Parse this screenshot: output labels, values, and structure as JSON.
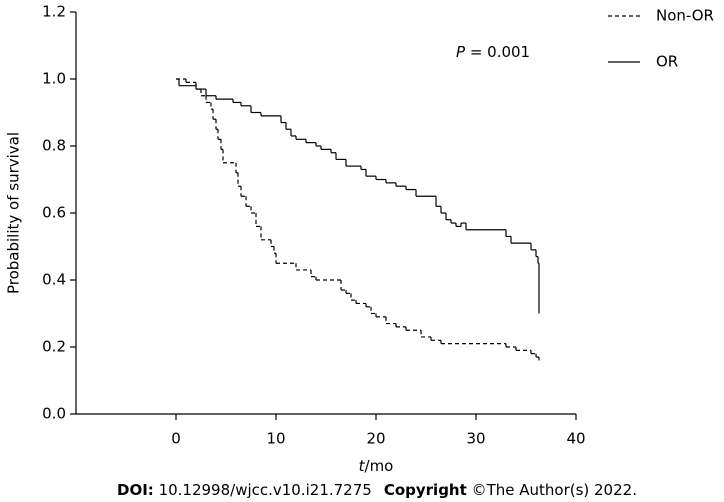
{
  "chart_data": {
    "type": "step",
    "y_label": "Probability of survival",
    "x_label": {
      "symbol": "t",
      "text": "/mo"
    },
    "annotation": {
      "symbol": "P",
      "text": " = 0.001"
    },
    "xlim": [
      -10,
      40
    ],
    "xticks": [
      0,
      10,
      20,
      30,
      40
    ],
    "ylim": [
      0,
      1.2
    ],
    "yticks": [
      {
        "value": 0,
        "label": "0.0"
      },
      0.2,
      0.4,
      0.6,
      0.8,
      {
        "value": 1,
        "label": "1.0"
      },
      1.2
    ],
    "legend": "top-right-outside",
    "series": [
      {
        "name": "Non-OR",
        "color": "#000000",
        "dash": true,
        "x": [
          0,
          1,
          2,
          2.5,
          3,
          3.5,
          3.7,
          4,
          4.2,
          4.5,
          4.7,
          6,
          6.2,
          6.5,
          7,
          7.5,
          8,
          8.5,
          9.5,
          9.8,
          10,
          12,
          13.5,
          14,
          16.5,
          17,
          17.5,
          18,
          19,
          19.5,
          20,
          21,
          22,
          23,
          24.5,
          25.5,
          26.5,
          33,
          34,
          35.5,
          36,
          36.3
        ],
        "values": [
          1.0,
          0.99,
          0.97,
          0.95,
          0.93,
          0.91,
          0.88,
          0.85,
          0.82,
          0.79,
          0.75,
          0.72,
          0.68,
          0.65,
          0.62,
          0.6,
          0.56,
          0.52,
          0.5,
          0.48,
          0.45,
          0.43,
          0.41,
          0.4,
          0.37,
          0.36,
          0.34,
          0.33,
          0.32,
          0.3,
          0.29,
          0.27,
          0.26,
          0.25,
          0.23,
          0.22,
          0.21,
          0.2,
          0.19,
          0.18,
          0.17,
          0.16
        ]
      },
      {
        "name": "OR",
        "color": "#000000",
        "dash": false,
        "x": [
          0,
          0.3,
          2,
          3,
          4,
          5.7,
          6.5,
          7.5,
          8.5,
          10.5,
          11,
          11.5,
          12,
          13,
          14,
          14.5,
          15.5,
          16,
          17,
          18.5,
          19,
          20,
          21,
          22,
          23,
          24,
          26,
          26.5,
          27,
          27.5,
          28,
          28.5,
          29,
          33,
          33.5,
          35.5,
          36,
          36.2,
          36.3
        ],
        "values": [
          1.0,
          0.98,
          0.97,
          0.95,
          0.94,
          0.93,
          0.92,
          0.9,
          0.89,
          0.87,
          0.85,
          0.83,
          0.82,
          0.81,
          0.8,
          0.79,
          0.78,
          0.76,
          0.74,
          0.73,
          0.71,
          0.7,
          0.69,
          0.68,
          0.67,
          0.65,
          0.62,
          0.6,
          0.58,
          0.57,
          0.56,
          0.57,
          0.55,
          0.53,
          0.51,
          0.49,
          0.47,
          0.45,
          0.3
        ]
      }
    ]
  },
  "footer": {
    "doi_label": "DOI:",
    "doi": " 10.12998/wjcc.v10.i21.7275",
    "copyright_label": "Copyright",
    "copyright": " ©The Author(s) 2022."
  }
}
